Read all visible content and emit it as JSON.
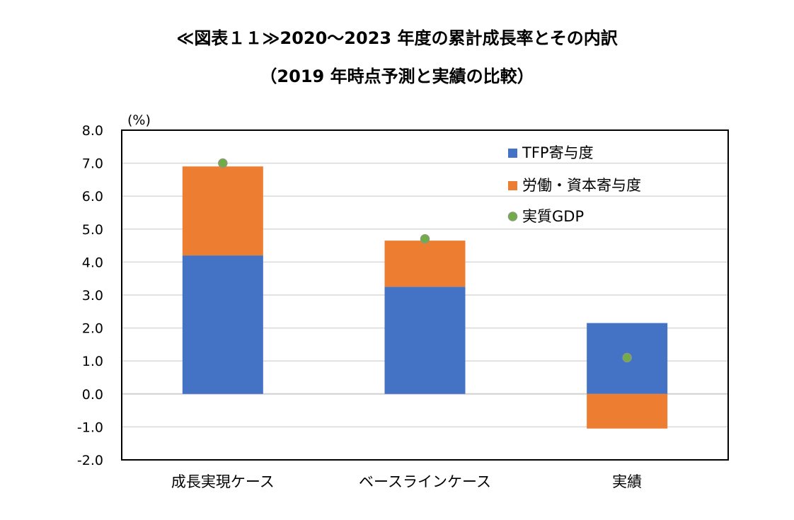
{
  "chart_data": {
    "type": "bar",
    "stacked": true,
    "title": "≪図表１１≫2020～2023 年度の累計成長率とその内訳",
    "subtitle": "（2019 年時点予測と実績の比較）",
    "ylabel_unit": "(%)",
    "ylim": [
      -2.0,
      8.0
    ],
    "yticks": [
      "8.0",
      "7.0",
      "6.0",
      "5.0",
      "4.0",
      "3.0",
      "2.0",
      "1.0",
      "0.0",
      "-1.0",
      "-2.0"
    ],
    "ytick_values": [
      8,
      7,
      6,
      5,
      4,
      3,
      2,
      1,
      0,
      -1,
      -2
    ],
    "categories": [
      "成長実現ケース",
      "ベースラインケース",
      "実績"
    ],
    "series": [
      {
        "name": "TFP寄与度",
        "kind": "bar",
        "color": "#4472C4",
        "values": [
          4.2,
          3.25,
          2.15
        ]
      },
      {
        "name": "労働・資本寄与度",
        "kind": "bar",
        "color": "#ED7D31",
        "values": [
          2.7,
          1.4,
          -1.05
        ]
      },
      {
        "name": "実質GDP",
        "kind": "point",
        "color": "#70AD47",
        "values": [
          7.0,
          4.7,
          1.1
        ]
      }
    ],
    "grid": true,
    "legend_position": "top-right"
  }
}
